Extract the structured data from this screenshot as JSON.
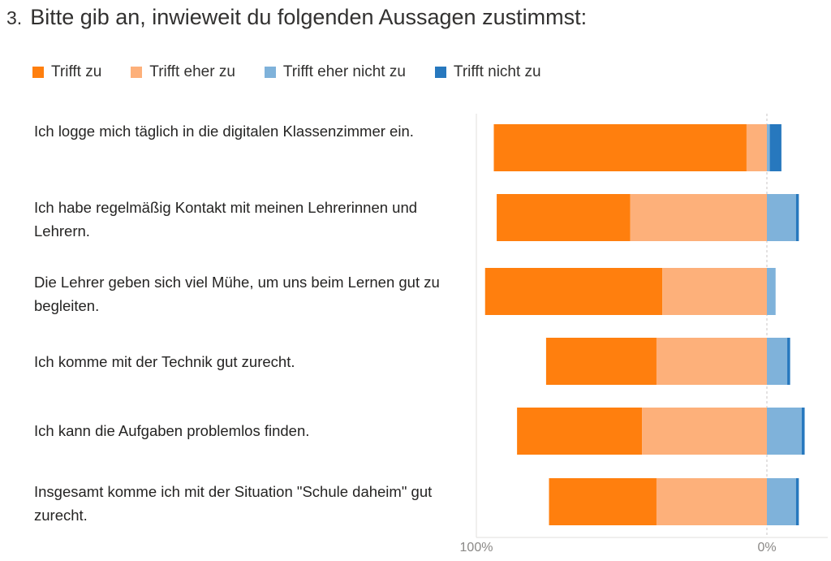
{
  "question": {
    "number": "3.",
    "text": "Bitte gib an, inwieweit du folgenden Aussagen zustimmst:"
  },
  "legend": [
    {
      "label": "Trifft zu",
      "color": "#FF7F0E"
    },
    {
      "label": "Trifft eher zu",
      "color": "#FDB07A"
    },
    {
      "label": "Trifft eher nicht zu",
      "color": "#7FB2DA"
    },
    {
      "label": "Trifft nicht zu",
      "color": "#2778BE"
    }
  ],
  "chart_data": {
    "type": "bar",
    "orientation": "horizontal-diverging",
    "categories": [
      "Ich logge mich täglich in die digitalen Klassenzimmer ein.",
      "Ich habe regelmäßig Kontakt mit meinen Lehrerinnen und Lehrern.",
      "Die Lehrer geben sich viel Mühe, um uns beim Lernen gut zu begleiten.",
      "Ich komme mit der Technik gut zurecht.",
      "Ich kann die Aufgaben problemlos finden.",
      "Insgesamt komme ich mit der Situation \"Schule daheim\" gut zurecht."
    ],
    "series": [
      {
        "name": "Trifft zu",
        "values": [
          87,
          46,
          61,
          38,
          43,
          37
        ]
      },
      {
        "name": "Trifft eher zu",
        "values": [
          7,
          47,
          36,
          38,
          43,
          38
        ]
      },
      {
        "name": "Trifft eher nicht zu",
        "values": [
          1,
          10,
          3,
          7,
          12,
          10
        ]
      },
      {
        "name": "Trifft nicht zu",
        "values": [
          4,
          1,
          0,
          1,
          1,
          1
        ]
      }
    ],
    "xticks": [
      "100%",
      "0%"
    ],
    "legend_position": "top-left",
    "grid": false
  }
}
